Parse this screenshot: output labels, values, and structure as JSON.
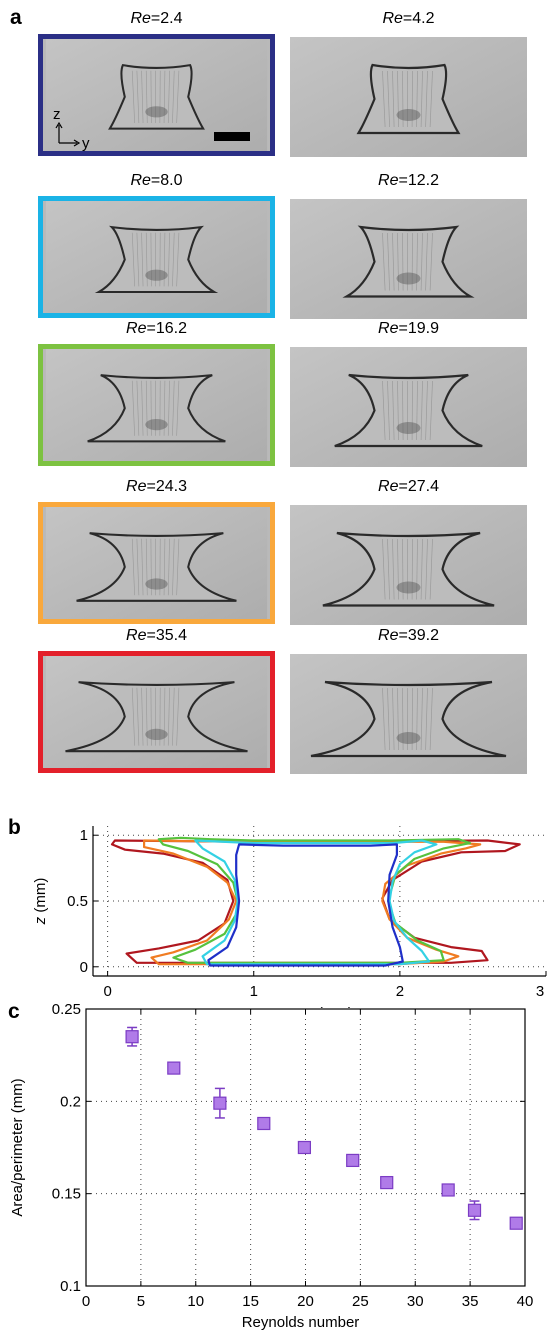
{
  "panel_a": {
    "letter": "a",
    "axis_z": "z",
    "axis_y": "y",
    "images": [
      {
        "re_symbol": "Re",
        "re_value": "=2.4",
        "highlight": "#2b2f86"
      },
      {
        "re_symbol": "Re",
        "re_value": "=4.2",
        "highlight": ""
      },
      {
        "re_symbol": "Re",
        "re_value": "=8.0",
        "highlight": "#1ab3e6"
      },
      {
        "re_symbol": "Re",
        "re_value": "=12.2",
        "highlight": ""
      },
      {
        "re_symbol": "Re",
        "re_value": "=16.2",
        "highlight": "#7dc241"
      },
      {
        "re_symbol": "Re",
        "re_value": "=19.9",
        "highlight": ""
      },
      {
        "re_symbol": "Re",
        "re_value": "=24.3",
        "highlight": "#f9a83c"
      },
      {
        "re_symbol": "Re",
        "re_value": "=27.4",
        "highlight": ""
      },
      {
        "re_symbol": "Re",
        "re_value": "=35.4",
        "highlight": "#e3202a"
      },
      {
        "re_symbol": "Re",
        "re_value": "=39.2",
        "highlight": ""
      }
    ]
  },
  "panel_b": {
    "letter": "b",
    "chart_data": {
      "type": "line",
      "xlabel_symbol": "y",
      "xlabel_unit": " (mm)",
      "ylabel_symbol": "z",
      "ylabel_unit": " (mm)",
      "xlim": [
        -0.1,
        3.0
      ],
      "ylim": [
        -0.07,
        1.07
      ],
      "xticks": [
        0,
        1,
        2,
        3
      ],
      "yticks": [
        0,
        0.5,
        1
      ],
      "grid": true,
      "series": [
        {
          "color": "#b0171f",
          "outline": [
            [
              0.05,
              0.96
            ],
            [
              1.0,
              0.95
            ],
            [
              2.6,
              0.96
            ],
            [
              2.82,
              0.93
            ],
            [
              2.72,
              0.88
            ],
            [
              2.42,
              0.87
            ],
            [
              2.15,
              0.8
            ],
            [
              1.95,
              0.66
            ],
            [
              1.88,
              0.52
            ],
            [
              1.93,
              0.36
            ],
            [
              2.1,
              0.22
            ],
            [
              2.35,
              0.15
            ],
            [
              2.56,
              0.12
            ],
            [
              2.6,
              0.05
            ],
            [
              2.35,
              0.03
            ],
            [
              1.0,
              0.03
            ],
            [
              0.2,
              0.03
            ],
            [
              0.13,
              0.1
            ],
            [
              0.35,
              0.14
            ],
            [
              0.62,
              0.2
            ],
            [
              0.8,
              0.33
            ],
            [
              0.86,
              0.5
            ],
            [
              0.82,
              0.66
            ],
            [
              0.65,
              0.79
            ],
            [
              0.38,
              0.86
            ],
            [
              0.12,
              0.89
            ],
            [
              0.03,
              0.93
            ]
          ]
        },
        {
          "color": "#f07c22",
          "outline": [
            [
              0.25,
              0.96
            ],
            [
              1.0,
              0.95
            ],
            [
              2.3,
              0.95
            ],
            [
              2.55,
              0.93
            ],
            [
              2.45,
              0.9
            ],
            [
              2.28,
              0.86
            ],
            [
              2.05,
              0.77
            ],
            [
              1.9,
              0.63
            ],
            [
              1.88,
              0.5
            ],
            [
              1.93,
              0.36
            ],
            [
              2.05,
              0.22
            ],
            [
              2.25,
              0.13
            ],
            [
              2.4,
              0.08
            ],
            [
              2.3,
              0.04
            ],
            [
              2.0,
              0.02
            ],
            [
              1.0,
              0.02
            ],
            [
              0.35,
              0.02
            ],
            [
              0.3,
              0.07
            ],
            [
              0.45,
              0.11
            ],
            [
              0.68,
              0.2
            ],
            [
              0.83,
              0.36
            ],
            [
              0.88,
              0.5
            ],
            [
              0.82,
              0.64
            ],
            [
              0.68,
              0.76
            ],
            [
              0.45,
              0.86
            ],
            [
              0.25,
              0.91
            ]
          ]
        },
        {
          "color": "#56c23e",
          "outline": [
            [
              0.35,
              0.97
            ],
            [
              0.5,
              0.98
            ],
            [
              0.7,
              0.97
            ],
            [
              1.0,
              0.96
            ],
            [
              1.95,
              0.96
            ],
            [
              2.4,
              0.97
            ],
            [
              2.48,
              0.94
            ],
            [
              2.3,
              0.9
            ],
            [
              2.1,
              0.82
            ],
            [
              1.97,
              0.7
            ],
            [
              1.92,
              0.5
            ],
            [
              1.97,
              0.33
            ],
            [
              2.12,
              0.2
            ],
            [
              2.28,
              0.12
            ],
            [
              2.3,
              0.05
            ],
            [
              2.0,
              0.03
            ],
            [
              1.0,
              0.03
            ],
            [
              0.55,
              0.03
            ],
            [
              0.45,
              0.07
            ],
            [
              0.6,
              0.13
            ],
            [
              0.8,
              0.25
            ],
            [
              0.88,
              0.4
            ],
            [
              0.89,
              0.5
            ],
            [
              0.86,
              0.64
            ],
            [
              0.75,
              0.78
            ],
            [
              0.55,
              0.88
            ],
            [
              0.38,
              0.93
            ]
          ]
        },
        {
          "color": "#34d1e4",
          "outline": [
            [
              0.6,
              0.96
            ],
            [
              1.0,
              0.94
            ],
            [
              1.95,
              0.94
            ],
            [
              2.15,
              0.96
            ],
            [
              2.25,
              0.93
            ],
            [
              2.1,
              0.87
            ],
            [
              2.0,
              0.78
            ],
            [
              1.95,
              0.65
            ],
            [
              1.93,
              0.5
            ],
            [
              1.96,
              0.35
            ],
            [
              2.05,
              0.22
            ],
            [
              2.15,
              0.12
            ],
            [
              2.2,
              0.04
            ],
            [
              2.0,
              0.02
            ],
            [
              1.0,
              0.02
            ],
            [
              0.68,
              0.02
            ],
            [
              0.65,
              0.08
            ],
            [
              0.8,
              0.2
            ],
            [
              0.87,
              0.35
            ],
            [
              0.89,
              0.5
            ],
            [
              0.87,
              0.66
            ],
            [
              0.8,
              0.8
            ],
            [
              0.65,
              0.9
            ]
          ]
        },
        {
          "color": "#1f2fc8",
          "outline": [
            [
              0.9,
              0.93
            ],
            [
              1.2,
              0.92
            ],
            [
              1.8,
              0.92
            ],
            [
              1.98,
              0.93
            ],
            [
              1.98,
              0.85
            ],
            [
              1.93,
              0.7
            ],
            [
              1.92,
              0.5
            ],
            [
              1.95,
              0.3
            ],
            [
              2.0,
              0.15
            ],
            [
              2.02,
              0.04
            ],
            [
              1.9,
              0.01
            ],
            [
              1.1,
              0.01
            ],
            [
              0.7,
              0.01
            ],
            [
              0.69,
              0.05
            ],
            [
              0.82,
              0.15
            ],
            [
              0.88,
              0.3
            ],
            [
              0.9,
              0.5
            ],
            [
              0.88,
              0.7
            ],
            [
              0.88,
              0.85
            ]
          ]
        }
      ]
    }
  },
  "panel_c": {
    "letter": "c",
    "chart_data": {
      "type": "scatter",
      "xlabel": "Reynolds number",
      "ylabel": "Area/perimeter (mm)",
      "xlim": [
        0,
        40
      ],
      "ylim": [
        0.1,
        0.25
      ],
      "xticks": [
        0,
        5,
        10,
        15,
        20,
        25,
        30,
        35,
        40
      ],
      "yticks": [
        0.1,
        0.15,
        0.2,
        0.25
      ],
      "grid": true,
      "marker_color": "#b07be8",
      "marker_edge": "#7b3cc4",
      "x": [
        4.2,
        8.0,
        12.2,
        16.2,
        19.9,
        24.3,
        27.4,
        33.0,
        35.4,
        39.2
      ],
      "y": [
        0.235,
        0.218,
        0.199,
        0.188,
        0.175,
        0.168,
        0.156,
        0.152,
        0.141,
        0.134
      ],
      "err": [
        0.005,
        0.003,
        0.008,
        0.002,
        0.002,
        0.002,
        0.002,
        0.002,
        0.005,
        0.002
      ]
    }
  }
}
